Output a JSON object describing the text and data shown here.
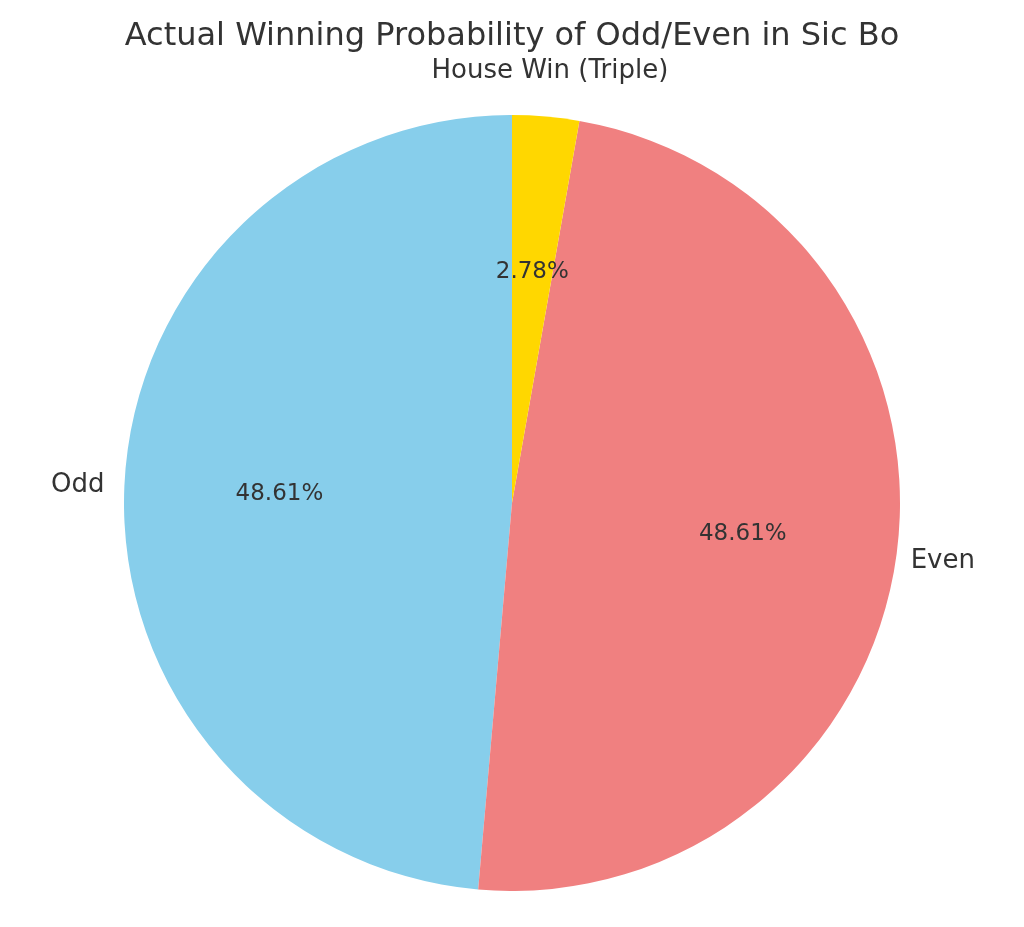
{
  "chart_data": {
    "type": "pie",
    "title": "Actual Winning Probability of Odd/Even in Sic Bo",
    "categories": [
      "Odd",
      "Even",
      "House Win (Triple)"
    ],
    "values": [
      48.61,
      48.61,
      2.78
    ],
    "colors": [
      "#87ceeb",
      "#f08080",
      "#ffd700"
    ],
    "value_labels": [
      "48.61%",
      "48.61%",
      "2.78%"
    ],
    "legend": false
  }
}
